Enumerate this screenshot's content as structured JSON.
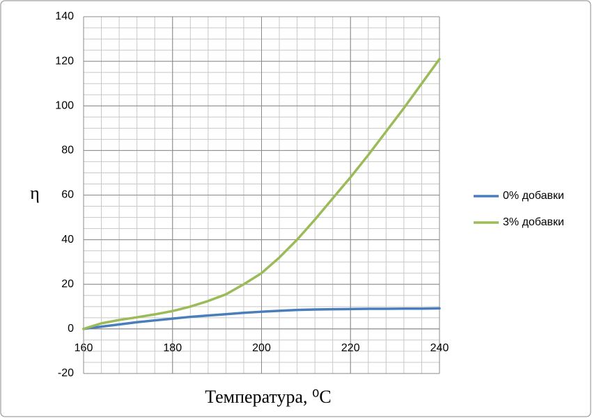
{
  "chart_data": {
    "type": "line",
    "xlabel": "Температура, ⁰C",
    "ylabel": "η",
    "x": [
      160,
      164,
      168,
      172,
      176,
      180,
      184,
      188,
      192,
      196,
      200,
      204,
      208,
      212,
      216,
      220,
      224,
      228,
      232,
      236,
      240
    ],
    "series": [
      {
        "name": "0% добавки",
        "color": "#4a7ebb",
        "values": [
          0,
          1,
          2,
          3,
          3.8,
          4.6,
          5.4,
          6,
          6.6,
          7.2,
          7.7,
          8.1,
          8.5,
          8.7,
          8.8,
          8.9,
          9,
          9,
          9.1,
          9.1,
          9.2
        ]
      },
      {
        "name": "3% добавки",
        "color": "#9bbb59",
        "values": [
          0,
          2.5,
          4,
          5.2,
          6.5,
          8,
          10,
          12.5,
          15.5,
          20,
          25,
          32,
          40,
          49,
          58.5,
          68,
          78,
          88.5,
          99,
          110,
          121
        ]
      }
    ],
    "xlim": [
      160,
      240
    ],
    "xticks": [
      160,
      180,
      200,
      220,
      240
    ],
    "ylim": [
      -20,
      140
    ],
    "yticks": [
      -20,
      0,
      20,
      40,
      60,
      80,
      100,
      120,
      140
    ],
    "grid": true,
    "x_minor_grid": 4,
    "y_minor_grid": 5,
    "legend": "right"
  }
}
